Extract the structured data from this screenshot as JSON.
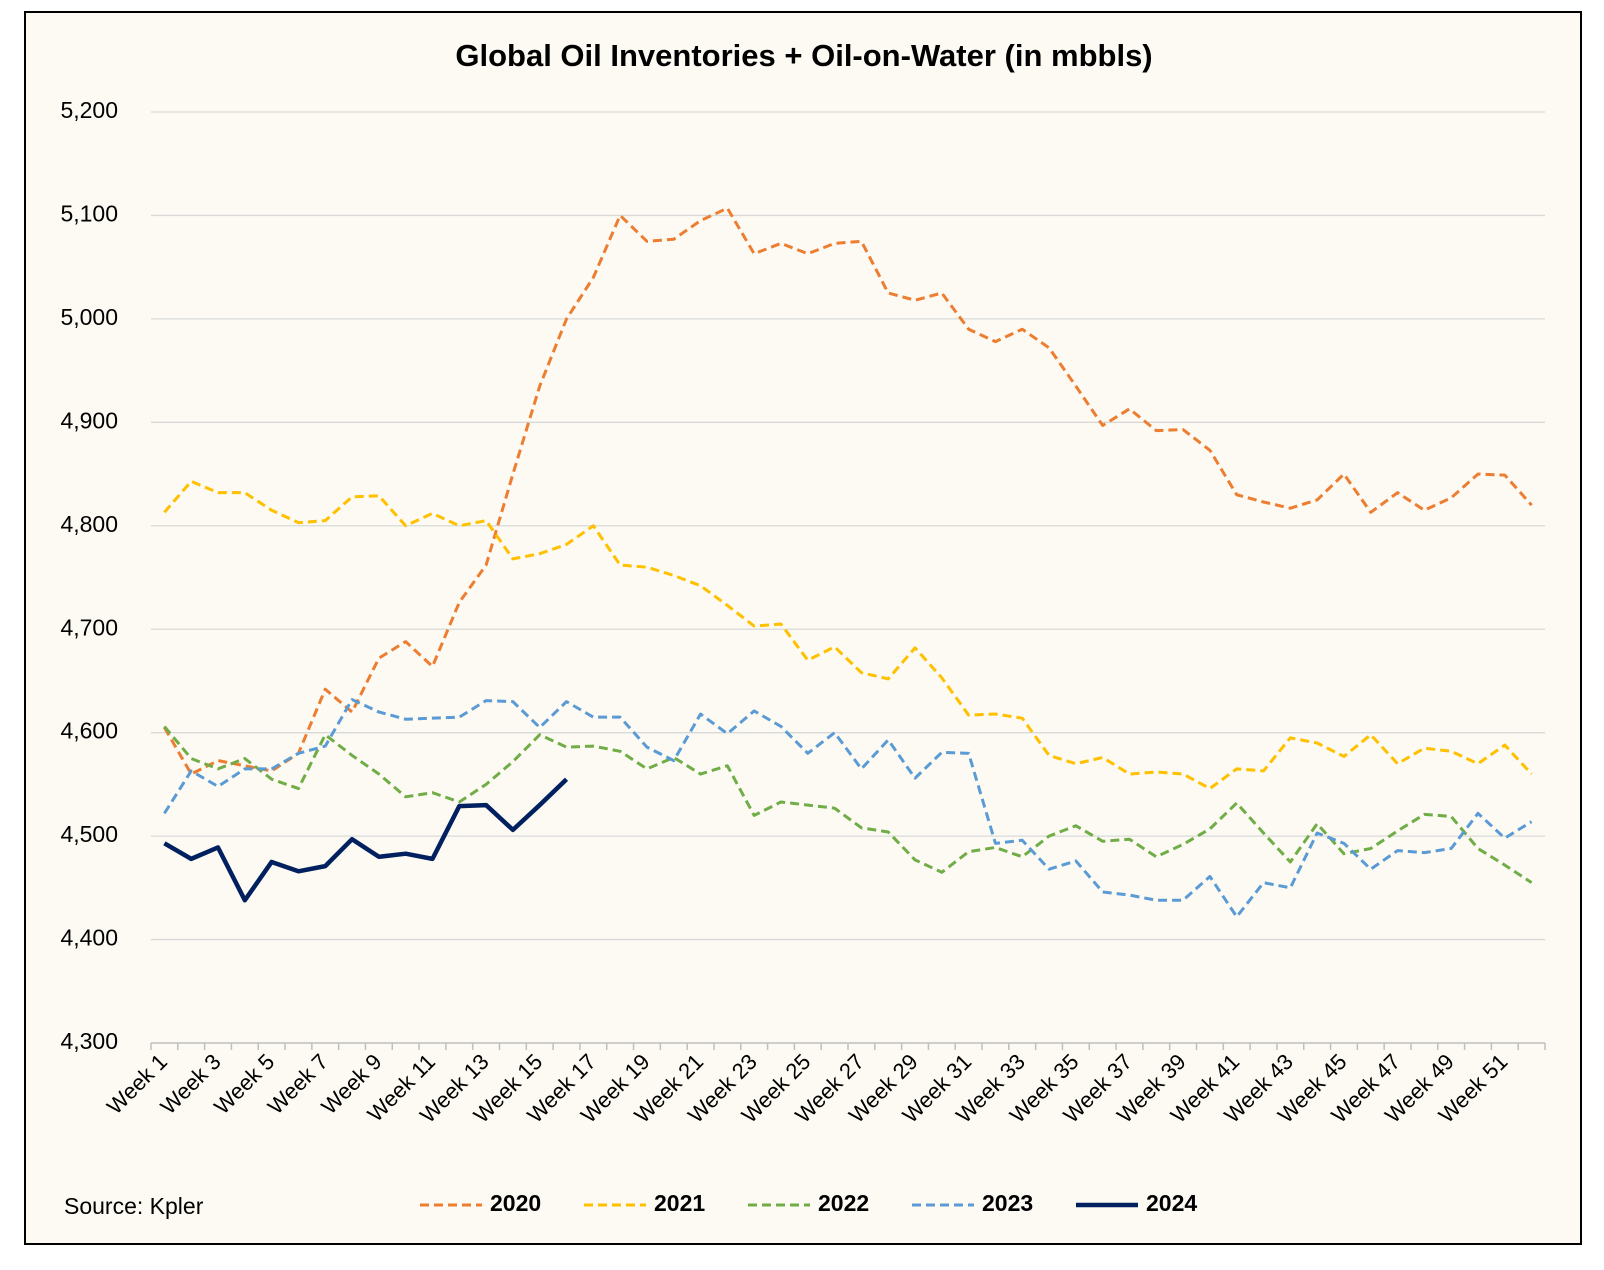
{
  "chart_data": {
    "type": "line",
    "title": "Global Oil Inventories + Oil-on-Water (in mbbls)",
    "source": "Source: Kpler",
    "categories": [
      "Week 1",
      null,
      "Week 3",
      null,
      "Week 5",
      null,
      "Week 7",
      null,
      "Week 9",
      null,
      "Week 11",
      null,
      "Week 13",
      null,
      "Week 15",
      null,
      "Week 17",
      null,
      "Week 19",
      null,
      "Week 21",
      null,
      "Week 23",
      null,
      "Week 25",
      null,
      "Week 27",
      null,
      "Week 29",
      null,
      "Week 31",
      null,
      "Week 33",
      null,
      "Week 35",
      null,
      "Week 37",
      null,
      "Week 39",
      null,
      "Week 41",
      null,
      "Week 43",
      null,
      "Week 45",
      null,
      "Week 47",
      null,
      "Week 49",
      null,
      "Week 51",
      null
    ],
    "series": [
      {
        "name": "2020",
        "color": "#ED7D31",
        "dashed": true,
        "values": [
          4605,
          4560,
          4573,
          4568,
          4563,
          4580,
          4642,
          4620,
          4672,
          4688,
          4664,
          4726,
          4762,
          4850,
          4935,
          5000,
          5040,
          5100,
          5075,
          5077,
          5095,
          5107,
          5063,
          5073,
          5063,
          5073,
          5075,
          5025,
          5018,
          5025,
          4990,
          4978,
          4990,
          4972,
          4935,
          4897,
          4913,
          4892,
          4893,
          4873,
          4830,
          4823,
          4817,
          4825,
          4850,
          4813,
          4832,
          4815,
          4827,
          4850,
          4849,
          4820
        ]
      },
      {
        "name": "2021",
        "color": "#FFC000",
        "dashed": true,
        "values": [
          4813,
          4843,
          4832,
          4832,
          4815,
          4803,
          4805,
          4828,
          4829,
          4800,
          4812,
          4800,
          4805,
          4768,
          4773,
          4782,
          4800,
          4762,
          4760,
          4752,
          4742,
          4723,
          4703,
          4705,
          4670,
          4683,
          4658,
          4652,
          4682,
          4653,
          4617,
          4618,
          4614,
          4578,
          4570,
          4576,
          4560,
          4562,
          4560,
          4546,
          4565,
          4563,
          4595,
          4590,
          4577,
          4598,
          4570,
          4585,
          4582,
          4570,
          4588,
          4560
        ]
      },
      {
        "name": "2022",
        "color": "#70AD47",
        "dashed": true,
        "values": [
          4606,
          4575,
          4565,
          4575,
          4555,
          4546,
          4598,
          4578,
          4560,
          4538,
          4542,
          4533,
          4550,
          4572,
          4598,
          4586,
          4587,
          4582,
          4565,
          4576,
          4560,
          4568,
          4520,
          4533,
          4530,
          4527,
          4508,
          4504,
          4477,
          4465,
          4485,
          4489,
          4480,
          4500,
          4510,
          4495,
          4497,
          4480,
          4492,
          4507,
          4532,
          4503,
          4475,
          4512,
          4483,
          4488,
          4505,
          4521,
          4519,
          4488,
          4472,
          4455
        ]
      },
      {
        "name": "2023",
        "color": "#5B9BD5",
        "dashed": true,
        "values": [
          4522,
          4563,
          4548,
          4565,
          4565,
          4580,
          4587,
          4632,
          4620,
          4613,
          4614,
          4615,
          4631,
          4630,
          4605,
          4630,
          4615,
          4615,
          4586,
          4573,
          4618,
          4599,
          4621,
          4606,
          4580,
          4600,
          4565,
          4593,
          4556,
          4581,
          4580,
          4493,
          4496,
          4468,
          4476,
          4446,
          4443,
          4438,
          4438,
          4461,
          4422,
          4455,
          4450,
          4503,
          4493,
          4468,
          4486,
          4484,
          4488,
          4522,
          4498,
          4514
        ]
      },
      {
        "name": "2024",
        "color": "#002060",
        "dashed": false,
        "values": [
          4493,
          4478,
          4489,
          4438,
          4475,
          4466,
          4471,
          4497,
          4480,
          4483,
          4478,
          4529,
          4530,
          4506,
          4530,
          4555,
          null,
          null,
          null,
          null,
          null,
          null,
          null,
          null,
          null,
          null,
          null,
          null,
          null,
          null,
          null,
          null,
          null,
          null,
          null,
          null,
          null,
          null,
          null,
          null,
          null,
          null,
          null,
          null,
          null,
          null,
          null,
          null,
          null,
          null,
          null,
          null
        ]
      }
    ],
    "ylim": [
      4300,
      5200
    ],
    "yticks": [
      {
        "value": 4300,
        "label": "4,300"
      },
      {
        "value": 4400,
        "label": "4,400"
      },
      {
        "value": 4500,
        "label": "4,500"
      },
      {
        "value": 4600,
        "label": "4,600"
      },
      {
        "value": 4700,
        "label": "4,700"
      },
      {
        "value": 4800,
        "label": "4,800"
      },
      {
        "value": 4900,
        "label": "4,900"
      },
      {
        "value": 5000,
        "label": "5,000"
      },
      {
        "value": 5100,
        "label": "5,100"
      },
      {
        "value": 5200,
        "label": "5,200"
      }
    ],
    "grid": true,
    "legend": "bottom"
  }
}
